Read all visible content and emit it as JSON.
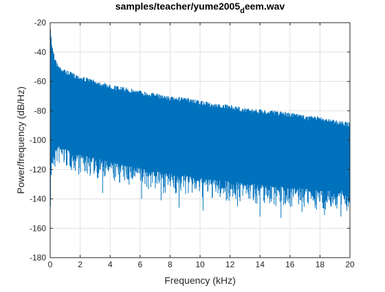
{
  "title": {
    "main": "samples/teacher/yume2005",
    "subscript": "d",
    "tail": "eem.wav"
  },
  "chart_data": {
    "type": "line",
    "title": "samples/teacher/yume2005_deem.wav",
    "xlabel": "Frequency (kHz)",
    "ylabel": "Power/frequency (dB/Hz)",
    "xlim": [
      0,
      20
    ],
    "ylim": [
      -180,
      -20
    ],
    "xticks": [
      0,
      2,
      4,
      6,
      8,
      10,
      12,
      14,
      16,
      18,
      20
    ],
    "yticks": [
      -180,
      -160,
      -140,
      -120,
      -100,
      -80,
      -60,
      -40,
      -20
    ],
    "grid": true,
    "legend": "none",
    "series": [
      {
        "color": "#0072bd",
        "x": [
          0,
          0.1,
          0.3,
          0.5,
          1,
          2,
          3,
          4,
          5,
          6,
          7,
          8,
          9,
          10,
          11,
          12,
          13,
          14,
          15,
          16,
          17,
          18,
          19,
          20
        ],
        "upper": [
          -21,
          -33,
          -43,
          -48,
          -52,
          -56,
          -59,
          -62,
          -64,
          -66,
          -68,
          -70,
          -71,
          -73,
          -75,
          -76,
          -78,
          -79,
          -80,
          -81,
          -83,
          -84,
          -86,
          -88
        ],
        "lower": [
          -130,
          -112,
          -108,
          -104,
          -106,
          -110,
          -112,
          -115,
          -117,
          -119,
          -121,
          -123,
          -124,
          -126,
          -127,
          -128,
          -129,
          -130,
          -131,
          -132,
          -133,
          -134,
          -134,
          -135
        ],
        "min_spikes": [
          {
            "x": 0.02,
            "y": -145
          },
          {
            "x": 3.5,
            "y": -136
          },
          {
            "x": 6.1,
            "y": -140
          },
          {
            "x": 7.4,
            "y": -141
          },
          {
            "x": 8.6,
            "y": -146
          },
          {
            "x": 10.2,
            "y": -148
          },
          {
            "x": 12.5,
            "y": -145
          },
          {
            "x": 14.0,
            "y": -152
          },
          {
            "x": 15.4,
            "y": -153
          },
          {
            "x": 16.8,
            "y": -149
          },
          {
            "x": 18.3,
            "y": -151
          },
          {
            "x": 19.4,
            "y": -152
          }
        ]
      }
    ]
  },
  "colors": {
    "series": "#0072bd",
    "grid": "#e0e0e0",
    "axis": "#262626"
  }
}
